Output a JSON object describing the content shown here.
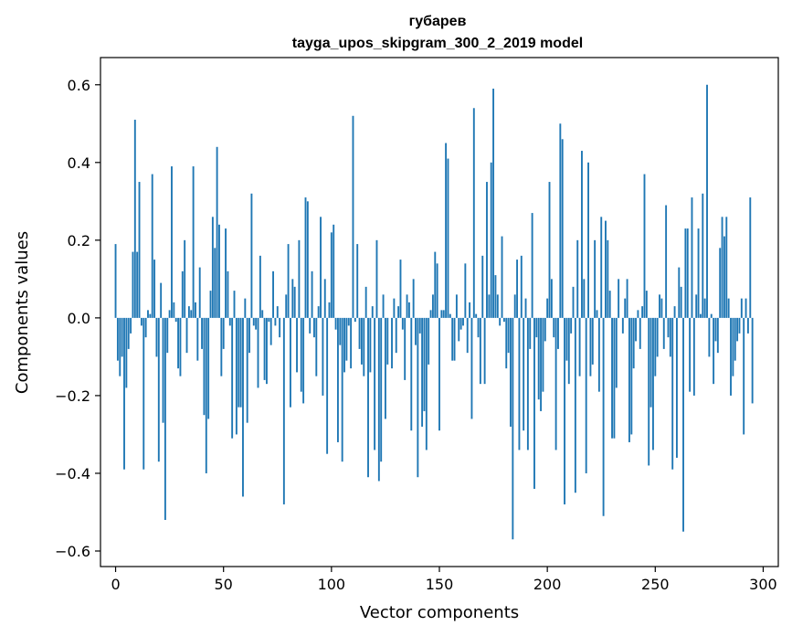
{
  "chart_data": {
    "type": "bar",
    "title": "губарев",
    "subtitle": "tayga_upos_skipgram_300_2_2019 model",
    "xlabel": "Vector components",
    "ylabel": "Components values",
    "xlim": [
      -7,
      307
    ],
    "ylim": [
      -0.64,
      0.67
    ],
    "xticks": [
      0,
      50,
      100,
      150,
      200,
      250,
      300
    ],
    "xtick_labels": [
      "0",
      "50",
      "100",
      "150",
      "200",
      "250",
      "300"
    ],
    "yticks": [
      -0.6,
      -0.4,
      -0.2,
      0.0,
      0.2,
      0.4,
      0.6
    ],
    "ytick_labels": [
      "−0.6",
      "−0.4",
      "−0.2",
      "0.0",
      "0.2",
      "0.4",
      "0.6"
    ],
    "bar_color": "#1f77b4",
    "grid": false,
    "values": [
      0.19,
      -0.11,
      -0.15,
      -0.1,
      -0.39,
      -0.18,
      -0.08,
      -0.04,
      0.17,
      0.51,
      0.17,
      0.35,
      -0.02,
      -0.39,
      -0.05,
      0.02,
      0.01,
      0.37,
      0.15,
      -0.1,
      -0.37,
      0.09,
      -0.27,
      -0.52,
      -0.09,
      0.02,
      0.39,
      0.04,
      -0.01,
      -0.13,
      -0.15,
      0.12,
      0.2,
      -0.09,
      0.03,
      0.02,
      0.39,
      0.04,
      -0.11,
      0.13,
      -0.08,
      -0.25,
      -0.4,
      -0.26,
      0.07,
      0.26,
      0.18,
      0.44,
      0.24,
      -0.15,
      -0.08,
      0.23,
      0.12,
      -0.02,
      -0.31,
      0.07,
      -0.3,
      -0.23,
      -0.23,
      -0.46,
      0.05,
      -0.27,
      -0.09,
      0.32,
      -0.02,
      -0.03,
      -0.18,
      0.16,
      0.02,
      -0.16,
      -0.17,
      -0.01,
      -0.07,
      0.12,
      -0.02,
      0.03,
      -0.05,
      0.0,
      -0.48,
      0.06,
      0.19,
      -0.23,
      0.1,
      0.08,
      -0.14,
      0.2,
      -0.19,
      -0.22,
      0.31,
      0.3,
      -0.04,
      0.12,
      -0.05,
      -0.15,
      0.03,
      0.26,
      -0.2,
      0.1,
      -0.35,
      0.04,
      0.22,
      0.24,
      -0.03,
      -0.32,
      -0.07,
      -0.37,
      -0.14,
      -0.11,
      -0.02,
      -0.13,
      0.52,
      -0.01,
      0.19,
      -0.08,
      -0.12,
      -0.15,
      0.08,
      -0.41,
      -0.14,
      0.03,
      -0.34,
      0.2,
      -0.42,
      -0.37,
      0.06,
      -0.26,
      -0.12,
      0.0,
      -0.13,
      0.05,
      -0.09,
      0.03,
      0.15,
      -0.03,
      -0.16,
      0.06,
      0.04,
      -0.29,
      0.1,
      -0.07,
      -0.41,
      -0.04,
      -0.28,
      -0.24,
      -0.34,
      -0.12,
      0.02,
      0.06,
      0.17,
      0.14,
      -0.29,
      0.02,
      0.02,
      0.45,
      0.41,
      0.01,
      -0.11,
      -0.11,
      0.06,
      -0.06,
      -0.03,
      -0.02,
      0.14,
      -0.09,
      0.04,
      -0.26,
      0.54,
      0.01,
      -0.05,
      -0.17,
      0.16,
      -0.17,
      0.35,
      0.06,
      0.4,
      0.59,
      0.11,
      0.06,
      -0.02,
      0.21,
      -0.01,
      -0.13,
      -0.09,
      -0.28,
      -0.57,
      0.06,
      0.15,
      -0.34,
      0.16,
      -0.29,
      0.05,
      -0.34,
      -0.08,
      0.27,
      -0.44,
      -0.05,
      -0.21,
      -0.24,
      -0.19,
      -0.06,
      0.05,
      0.35,
      0.1,
      -0.05,
      -0.34,
      -0.08,
      0.5,
      0.46,
      -0.48,
      -0.11,
      -0.17,
      -0.04,
      0.08,
      -0.45,
      0.2,
      -0.15,
      0.43,
      0.1,
      -0.4,
      0.4,
      -0.15,
      -0.12,
      0.2,
      0.02,
      -0.19,
      0.26,
      -0.51,
      0.25,
      0.2,
      0.07,
      -0.31,
      -0.31,
      -0.18,
      0.1,
      0.0,
      -0.04,
      0.05,
      0.1,
      -0.32,
      -0.3,
      -0.13,
      -0.06,
      0.02,
      -0.08,
      0.03,
      0.37,
      0.07,
      -0.38,
      -0.23,
      -0.34,
      -0.15,
      -0.1,
      0.06,
      0.05,
      -0.08,
      0.29,
      -0.05,
      -0.1,
      -0.39,
      0.03,
      -0.36,
      0.13,
      0.08,
      -0.55,
      0.23,
      0.23,
      -0.19,
      0.31,
      -0.2,
      0.06,
      0.23,
      0.01,
      0.32,
      0.05,
      0.6,
      -0.1,
      0.01,
      -0.17,
      -0.06,
      -0.09,
      0.18,
      0.26,
      0.21,
      0.26,
      0.05,
      -0.2,
      -0.15,
      -0.11,
      -0.06,
      -0.04,
      0.05,
      -0.3,
      0.05,
      -0.04,
      0.31,
      -0.22
    ]
  }
}
